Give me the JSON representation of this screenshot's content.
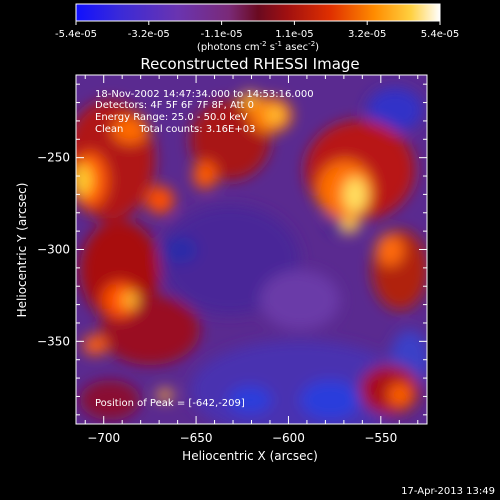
{
  "chart_data": {
    "type": "heatmap",
    "colormap": "RHESSI Reconstructed (signed, blue-purple-red-yellow-white)",
    "title": "Reconstructed RHESSI Image",
    "colorbar": {
      "ticks": [
        "-5.4e-05",
        "-3.2e-05",
        "-1.1e-05",
        "1.1e-05",
        "3.2e-05",
        "5.4e-05"
      ],
      "range": [
        -5.4e-05,
        5.4e-05
      ],
      "unit_prefix": "(photons cm",
      "unit_e1": "-2",
      "unit_mid": " s",
      "unit_e2": "-1",
      "unit_mid2": " asec",
      "unit_e3": "-2",
      "unit_suffix": ")"
    },
    "annotations": {
      "time": "18-Nov-2002 14:47:34.000 to 14:53:16.000",
      "detectors": "Detectors: 4F 5F 6F 7F 8F, Att 0",
      "energy": "Energy Range: 25.0 - 50.0 keV",
      "clean": "Clean     Total counts: 3.16E+03",
      "peak": "Position of Peak = [-642,-209]"
    },
    "xlabel": "Heliocentric X (arcsec)",
    "ylabel": "Heliocentric Y (arcsec)",
    "xlim": [
      -715,
      -525
    ],
    "ylim": [
      -395,
      -205
    ],
    "xticks": [
      -700,
      -650,
      -600,
      -550
    ],
    "yticks": [
      -250,
      -300,
      -350
    ],
    "footer": "17-Apr-2013 13:49"
  }
}
